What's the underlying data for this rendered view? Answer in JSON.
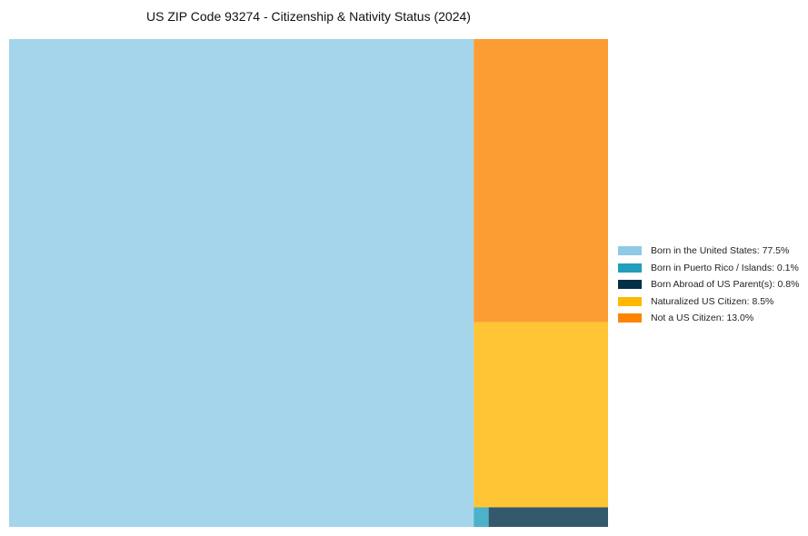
{
  "chart_data": {
    "type": "treemap",
    "title": "US ZIP Code 93274 - Citizenship & Nativity Status (2024)",
    "legend_position": "right",
    "items": [
      {
        "label": "Born in the United States",
        "value": 77.5,
        "color": "#8ecae6",
        "legend": "Born in the United States: 77.5%"
      },
      {
        "label": "Born in Puerto Rico / Islands",
        "value": 0.1,
        "color": "#219ebc",
        "legend": "Born in Puerto Rico / Islands: 0.1%"
      },
      {
        "label": "Born Abroad of US Parent(s)",
        "value": 0.8,
        "color": "#023047",
        "legend": "Born Abroad of US Parent(s): 0.8%"
      },
      {
        "label": "Naturalized US Citizen",
        "value": 8.5,
        "color": "#ffb703",
        "legend": "Naturalized US Citizen: 8.5%"
      },
      {
        "label": "Not a US Citizen",
        "value": 13.0,
        "color": "#fb8500",
        "legend": "Not a US Citizen: 13.0%"
      }
    ]
  }
}
